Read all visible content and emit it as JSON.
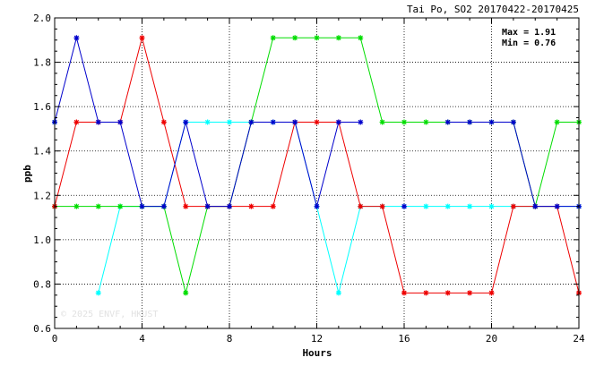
{
  "chart_data": {
    "type": "line",
    "title": "Tai Po, SO2 20170422-20170425",
    "xlabel": "Hours",
    "ylabel": "ppb",
    "xlim": [
      0,
      24
    ],
    "ylim": [
      0.6,
      2.0
    ],
    "xticks": [
      0,
      4,
      8,
      12,
      16,
      20,
      24
    ],
    "yticks": [
      0.6,
      0.8,
      1.0,
      1.2,
      1.4,
      1.6,
      1.8,
      2.0
    ],
    "xtick_labels": [
      "0",
      "4",
      "8",
      "12",
      "16",
      "20",
      "24"
    ],
    "ytick_labels": [
      "0.6",
      "0.8",
      "1.0",
      "1.2",
      "1.4",
      "1.6",
      "1.8",
      "2.0"
    ],
    "grid": true,
    "annotations": {
      "max_text": "Max = 1.91",
      "min_text": "Min = 0.76"
    },
    "watermark": "© 2025  ENVF, HKUST",
    "x": [
      0,
      1,
      2,
      3,
      4,
      5,
      6,
      7,
      8,
      9,
      10,
      11,
      12,
      13,
      14,
      15,
      16,
      17,
      18,
      19,
      20,
      21,
      22,
      23,
      24
    ],
    "series": [
      {
        "color": "#00ffff",
        "values": [
          1.53,
          null,
          0.76,
          1.15,
          1.15,
          1.15,
          1.53,
          1.53,
          1.53,
          1.53,
          1.53,
          1.53,
          1.15,
          0.76,
          1.15,
          1.15,
          1.15,
          1.15,
          1.15,
          1.15,
          1.15,
          1.15,
          1.15,
          1.15,
          1.15
        ]
      },
      {
        "color": "#00dd00",
        "values": [
          1.15,
          1.15,
          1.15,
          1.15,
          1.15,
          1.15,
          0.76,
          1.15,
          1.15,
          1.53,
          1.91,
          1.91,
          1.91,
          1.91,
          1.91,
          1.53,
          1.53,
          1.53,
          1.53,
          1.53,
          1.53,
          1.53,
          1.15,
          1.53,
          1.53
        ]
      },
      {
        "color": "#ee0000",
        "values": [
          1.15,
          1.53,
          1.53,
          1.53,
          1.91,
          1.53,
          1.15,
          1.15,
          1.15,
          1.15,
          1.15,
          1.53,
          1.53,
          1.53,
          1.15,
          1.15,
          0.76,
          0.76,
          0.76,
          0.76,
          0.76,
          1.15,
          1.15,
          1.15,
          0.76
        ]
      },
      {
        "color": "#0000cc",
        "values": [
          1.53,
          1.91,
          1.53,
          1.53,
          1.15,
          1.15,
          1.53,
          1.15,
          1.15,
          1.53,
          1.53,
          1.53,
          1.15,
          1.53,
          1.53,
          null,
          1.15,
          null,
          1.53,
          1.53,
          1.53,
          1.53,
          1.15,
          1.15,
          1.15
        ]
      }
    ]
  }
}
